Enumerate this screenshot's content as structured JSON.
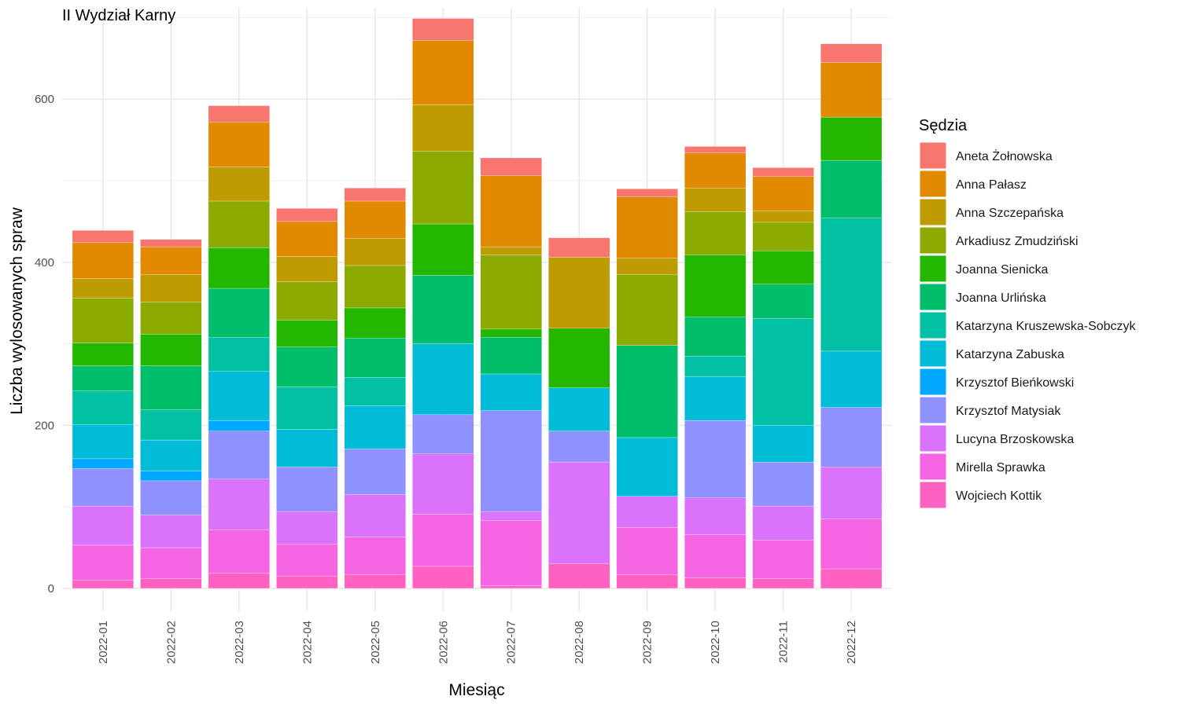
{
  "chart_data": {
    "type": "bar",
    "stacked": true,
    "title": "II Wydział Karny",
    "xlabel": "Miesiąc",
    "ylabel": "Liczba wylosowanych spraw",
    "ylim": [
      -28,
      712
    ],
    "yticks": [
      0,
      200,
      400,
      600
    ],
    "grid": true,
    "legend_title": "Sędzia",
    "legend_position": "right",
    "categories": [
      "2022-01",
      "2022-02",
      "2022-03",
      "2022-04",
      "2022-05",
      "2022-06",
      "2022-07",
      "2022-08",
      "2022-09",
      "2022-10",
      "2022-11",
      "2022-12"
    ],
    "series": [
      {
        "name": "Wojciech Kottik",
        "color": "#FF61C3",
        "values": [
          10,
          12,
          19,
          15,
          17,
          27,
          3,
          30,
          17,
          13,
          12,
          24
        ]
      },
      {
        "name": "Mirella Sprawka",
        "color": "#F564E3",
        "values": [
          43,
          38,
          53,
          39,
          46,
          64,
          80,
          0,
          58,
          53,
          47,
          61
        ]
      },
      {
        "name": "Lucyna Brzoskowska",
        "color": "#DB72FB",
        "values": [
          48,
          40,
          62,
          40,
          52,
          74,
          11,
          125,
          38,
          45,
          42,
          64
        ]
      },
      {
        "name": "Krzysztof Matysiak",
        "color": "#8F91FF",
        "values": [
          46,
          42,
          59,
          55,
          56,
          48,
          124,
          38,
          0,
          95,
          54,
          73
        ]
      },
      {
        "name": "Krzysztof Bieńkowski",
        "color": "#00A9FF",
        "values": [
          12,
          12,
          13,
          0,
          0,
          0,
          0,
          0,
          0,
          0,
          0,
          0
        ]
      },
      {
        "name": "Katarzyna Zabuska",
        "color": "#00BCD8",
        "values": [
          42,
          38,
          60,
          46,
          53,
          87,
          45,
          53,
          72,
          54,
          45,
          69
        ]
      },
      {
        "name": "Katarzyna Kruszewska-Sobczyk",
        "color": "#00C1A3",
        "values": [
          41,
          37,
          42,
          52,
          35,
          0,
          0,
          0,
          0,
          25,
          131,
          163
        ]
      },
      {
        "name": "Joanna Urlińska",
        "color": "#00BE6B",
        "values": [
          31,
          54,
          60,
          49,
          48,
          84,
          45,
          0,
          113,
          48,
          42,
          71
        ]
      },
      {
        "name": "Joanna Sienicka",
        "color": "#24B700",
        "values": [
          28,
          39,
          50,
          33,
          37,
          63,
          10,
          73,
          0,
          76,
          41,
          53
        ]
      },
      {
        "name": "Arkadiusz Zmudziński",
        "color": "#8CAB00",
        "values": [
          55,
          39,
          57,
          47,
          52,
          89,
          91,
          0,
          87,
          53,
          35,
          0
        ]
      },
      {
        "name": "Anna Szczepańska",
        "color": "#BE9C00",
        "values": [
          24,
          34,
          42,
          31,
          33,
          57,
          10,
          87,
          20,
          29,
          14,
          0
        ]
      },
      {
        "name": "Anna Pałasz",
        "color": "#E18A00",
        "values": [
          44,
          34,
          55,
          43,
          46,
          79,
          87,
          0,
          75,
          43,
          42,
          67
        ]
      },
      {
        "name": "Aneta Żołnowska",
        "color": "#F8766D",
        "values": [
          15,
          9,
          20,
          16,
          16,
          27,
          22,
          24,
          10,
          8,
          11,
          23
        ]
      }
    ],
    "legend_order": [
      "Aneta Żołnowska",
      "Anna Pałasz",
      "Anna Szczepańska",
      "Arkadiusz Zmudziński",
      "Joanna Sienicka",
      "Joanna Urlińska",
      "Katarzyna Kruszewska-Sobczyk",
      "Katarzyna Zabuska",
      "Krzysztof Bieńkowski",
      "Krzysztof Matysiak",
      "Lucyna Brzoskowska",
      "Mirella Sprawka",
      "Wojciech Kottik"
    ]
  }
}
